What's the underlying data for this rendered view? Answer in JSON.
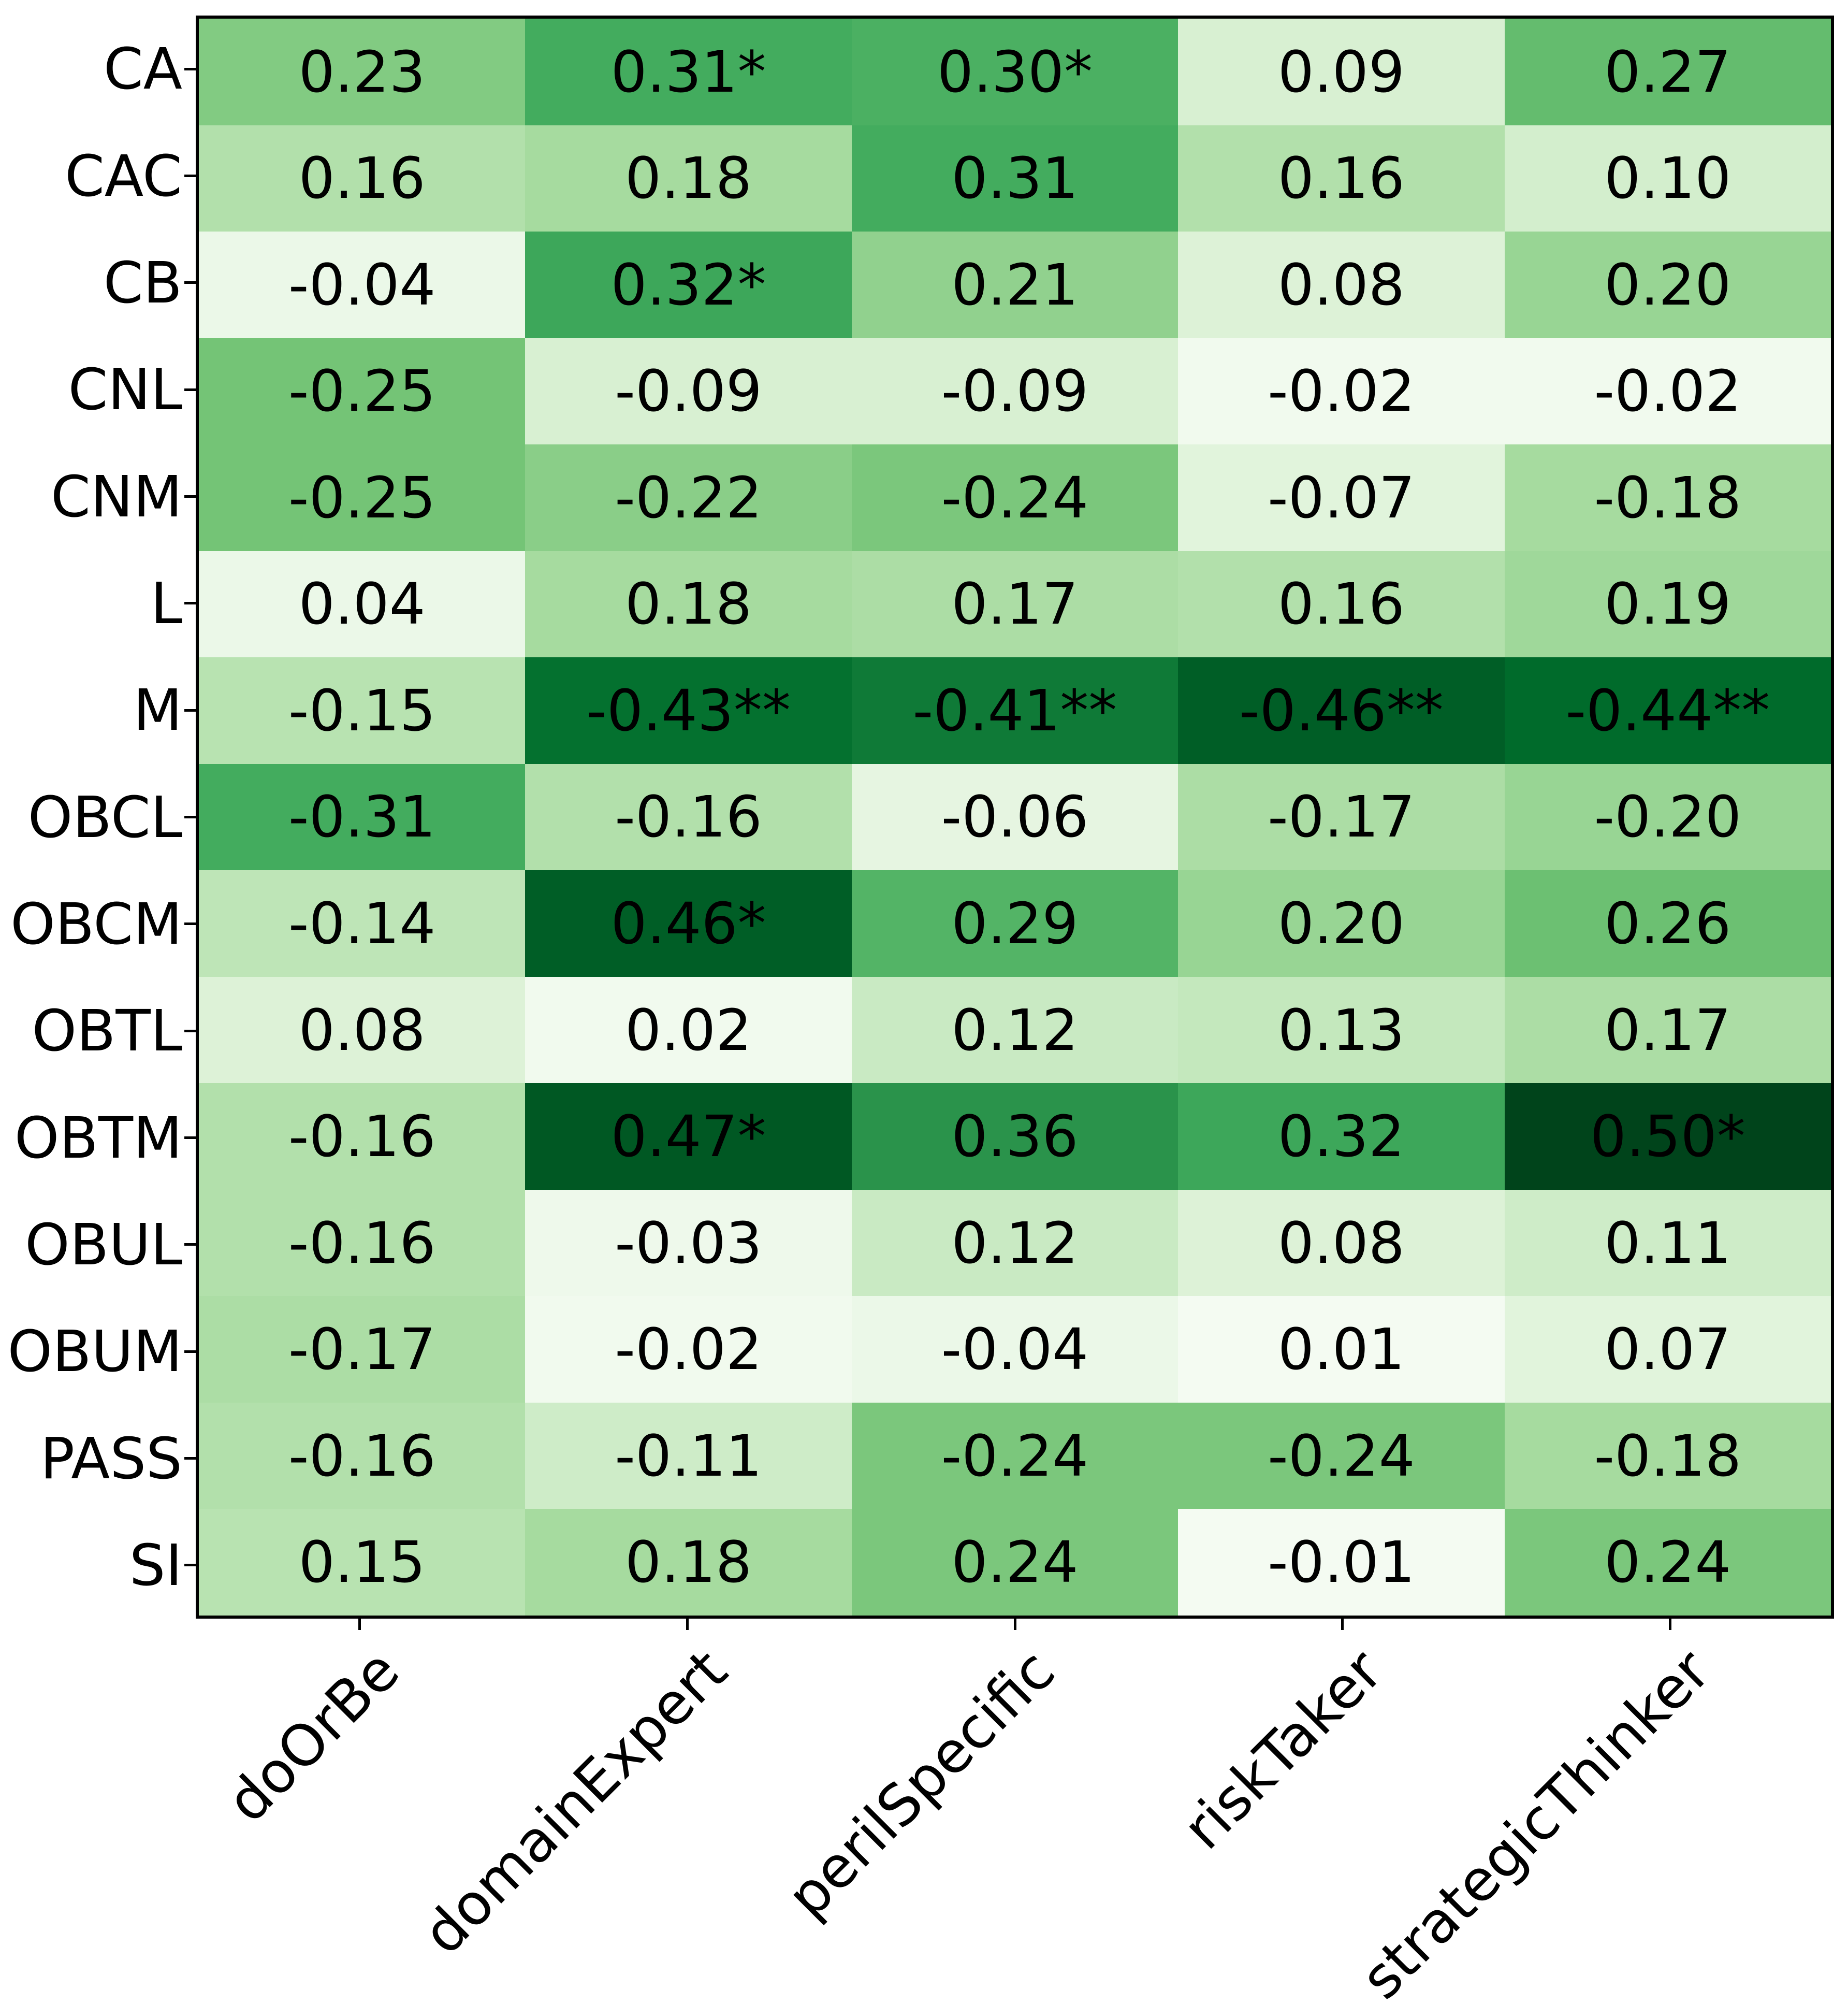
{
  "figure": {
    "kind": "correlation-heatmap-figure",
    "background_color": "#ffffff",
    "spine_color": "#000000",
    "text_color": "#000000"
  },
  "chart_data": {
    "type": "heatmap",
    "title": "",
    "xlabel": "",
    "ylabel": "",
    "grid": false,
    "legend_position": "none",
    "rows": [
      "CA",
      "CAC",
      "CB",
      "CNL",
      "CNM",
      "L",
      "M",
      "OBCL",
      "OBCM",
      "OBTL",
      "OBTM",
      "OBUL",
      "OBUM",
      "PASS",
      "SI"
    ],
    "columns": [
      "doOrBe",
      "domainExpert",
      "perilSpecific",
      "riskTaker",
      "strategicThinker"
    ],
    "values": [
      [
        0.23,
        0.31,
        0.3,
        0.09,
        0.27
      ],
      [
        0.16,
        0.18,
        0.31,
        0.16,
        0.1
      ],
      [
        -0.04,
        0.32,
        0.21,
        0.08,
        0.2
      ],
      [
        -0.25,
        -0.09,
        -0.09,
        -0.02,
        -0.02
      ],
      [
        -0.25,
        -0.22,
        -0.24,
        -0.07,
        -0.18
      ],
      [
        0.04,
        0.18,
        0.17,
        0.16,
        0.19
      ],
      [
        -0.15,
        -0.43,
        -0.41,
        -0.46,
        -0.44
      ],
      [
        -0.31,
        -0.16,
        -0.06,
        -0.17,
        -0.2
      ],
      [
        -0.14,
        0.46,
        0.29,
        0.2,
        0.26
      ],
      [
        0.08,
        0.02,
        0.12,
        0.13,
        0.17
      ],
      [
        -0.16,
        0.47,
        0.36,
        0.32,
        0.5
      ],
      [
        -0.16,
        -0.03,
        0.12,
        0.08,
        0.11
      ],
      [
        -0.17,
        -0.02,
        -0.04,
        0.01,
        0.07
      ],
      [
        -0.16,
        -0.11,
        -0.24,
        -0.24,
        -0.18
      ],
      [
        0.15,
        0.18,
        0.24,
        -0.01,
        0.24
      ]
    ],
    "annotations": [
      [
        "0.23",
        "0.31*",
        "0.30*",
        "0.09",
        "0.27"
      ],
      [
        "0.16",
        "0.18",
        "0.31",
        "0.16",
        "0.10"
      ],
      [
        "-0.04",
        "0.32*",
        "0.21",
        "0.08",
        "0.20"
      ],
      [
        "-0.25",
        "-0.09",
        "-0.09",
        "-0.02",
        "-0.02"
      ],
      [
        "-0.25",
        "-0.22",
        "-0.24",
        "-0.07",
        "-0.18"
      ],
      [
        "0.04",
        "0.18",
        "0.17",
        "0.16",
        "0.19"
      ],
      [
        "-0.15",
        "-0.43**",
        "-0.41**",
        "-0.46**",
        "-0.44**"
      ],
      [
        "-0.31",
        "-0.16",
        "-0.06",
        "-0.17",
        "-0.20"
      ],
      [
        "-0.14",
        "0.46*",
        "0.29",
        "0.20",
        "0.26"
      ],
      [
        "0.08",
        "0.02",
        "0.12",
        "0.13",
        "0.17"
      ],
      [
        "-0.16",
        "0.47*",
        "0.36",
        "0.32",
        "0.50*"
      ],
      [
        "-0.16",
        "-0.03",
        "0.12",
        "0.08",
        "0.11"
      ],
      [
        "-0.17",
        "-0.02",
        "-0.04",
        "0.01",
        "0.07"
      ],
      [
        "-0.16",
        "-0.11",
        "-0.24",
        "-0.24",
        "-0.18"
      ],
      [
        "0.15",
        "0.18",
        "0.24",
        "-0.01",
        "0.24"
      ]
    ],
    "colormap": {
      "name": "Greens",
      "mapped_on": "absolute-value",
      "vmin": 0,
      "vmax": 0.5,
      "anchors": [
        "#f7fcf5",
        "#e5f5e0",
        "#c7e9c0",
        "#a1d99b",
        "#74c476",
        "#41ab5d",
        "#238b45",
        "#006d2c",
        "#00441b"
      ]
    }
  }
}
